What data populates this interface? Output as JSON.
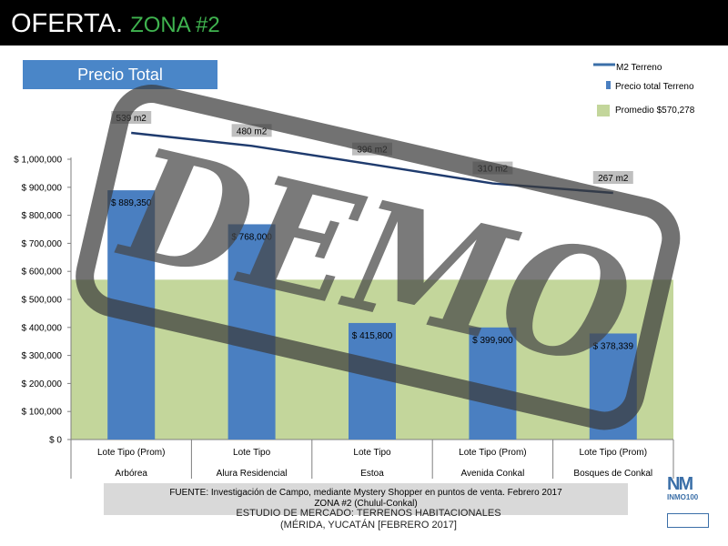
{
  "header": {
    "title": "OFERTA.",
    "subtitle": "ZONA #2"
  },
  "label_box": "Precio Total",
  "colors": {
    "bar": "#4a7fc1",
    "line": "#1f3b6e",
    "average_band": "#c3d69b",
    "label_bg": "#bfbfbf",
    "title_accent": "#3fb34f"
  },
  "chart_data": {
    "type": "bar",
    "categories": [
      {
        "line1": "Lote Tipo (Prom)",
        "line2": "Arbórea"
      },
      {
        "line1": "Lote Tipo",
        "line2": "Alura Residencial"
      },
      {
        "line1": "Lote Tipo",
        "line2": "Estoa"
      },
      {
        "line1": "Lote Tipo (Prom)",
        "line2": "Avenida Conkal"
      },
      {
        "line1": "Lote Tipo (Prom)",
        "line2": "Bosques de Conkal"
      }
    ],
    "series": [
      {
        "name": "Precio total Terreno",
        "values": [
          889350,
          768000,
          415800,
          399900,
          378339
        ],
        "labels": [
          "$ 889,350",
          "$ 768,000",
          "$ 415,800",
          "$ 399,900",
          "$ 378,339"
        ]
      },
      {
        "name": "M2 Terreno",
        "values": [
          539,
          480,
          396,
          310,
          267
        ],
        "labels": [
          "539 m2",
          "480 m2",
          "396 m2",
          "310 m2",
          "267 m2"
        ]
      }
    ],
    "average": {
      "name": "Promedio $570,278",
      "value": 570278
    },
    "ylim": [
      0,
      1000000
    ],
    "yticks": [
      0,
      100000,
      200000,
      300000,
      400000,
      500000,
      600000,
      700000,
      800000,
      900000,
      1000000
    ],
    "ytick_labels": [
      "$ 0",
      "$ 100,000",
      "$ 200,000",
      "$ 300,000",
      "$ 400,000",
      "$ 500,000",
      "$ 600,000",
      "$ 700,000",
      "$ 800,000",
      "$ 900,000",
      "$ 1,000,000"
    ],
    "legend": "top-right"
  },
  "source": {
    "line1": "FUENTE: Investigación de Campo, mediante  Mystery Shopper en puntos de venta. Febrero 2017",
    "line2": "ZONA #2 (Chulul-Conkal)"
  },
  "footer": {
    "line1": "ESTUDIO DE MERCADO: TERRENOS HABITACIONALES",
    "line2": "(MÉRIDA, YUCATÁN [FEBRERO 2017]"
  },
  "logo": {
    "mark": "NM",
    "text": "INMO100"
  },
  "watermark": "DEMO"
}
